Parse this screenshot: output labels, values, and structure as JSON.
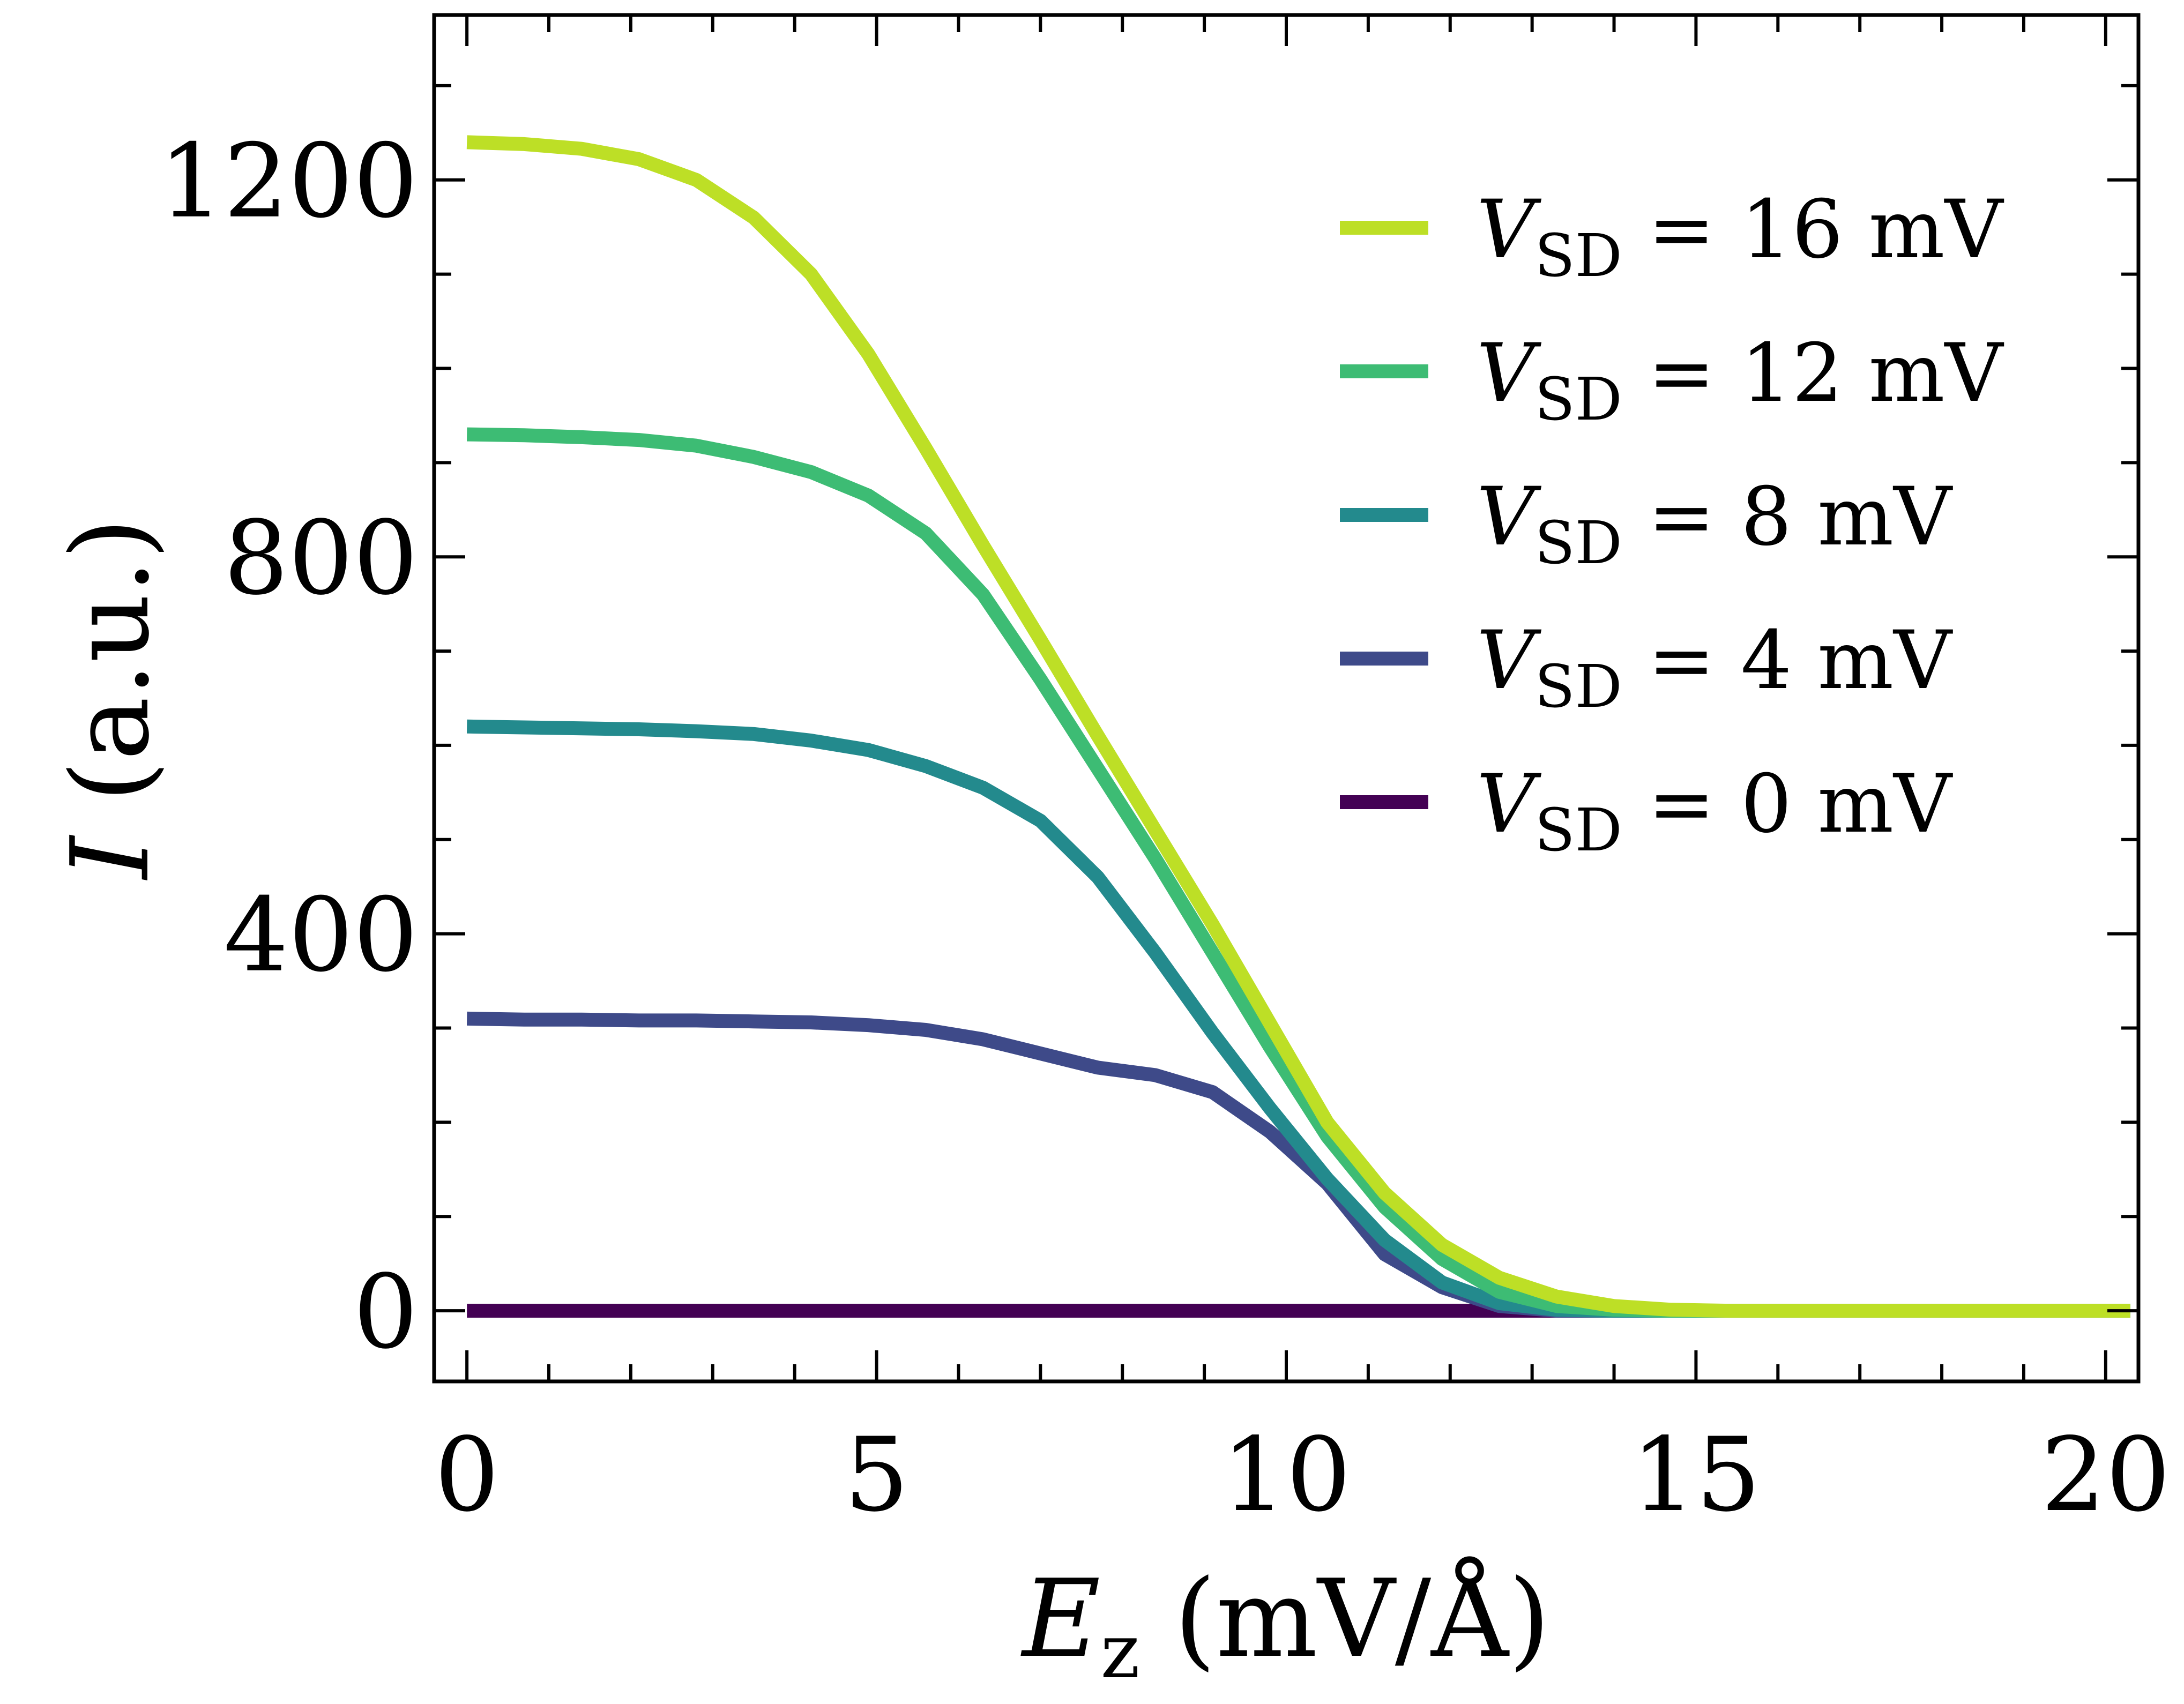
{
  "chart_data": {
    "type": "line",
    "xlabel": {
      "symbol": "E",
      "subscript": "z",
      "unit": " (mV/Å)"
    },
    "ylabel": {
      "symbol": "I",
      "unit": " (a.u.)"
    },
    "xlim": [
      -0.4,
      20.4
    ],
    "ylim": [
      -75,
      1375
    ],
    "xticks": [
      0,
      5,
      10,
      15,
      20
    ],
    "xtick_labels": [
      "0",
      "5",
      "10",
      "15",
      "20"
    ],
    "yticks": [
      0,
      400,
      800,
      1200
    ],
    "ytick_labels": [
      "0",
      "400",
      "800",
      "1200"
    ],
    "legend_position": "top-right",
    "grid": false,
    "x": [
      0,
      0.7,
      1.4,
      2.1,
      2.8,
      3.5,
      4.2,
      4.9,
      5.6,
      6.3,
      7.0,
      7.7,
      8.4,
      9.1,
      9.8,
      10.5,
      11.2,
      11.9,
      12.6,
      13.3,
      14.0,
      14.7,
      15.4,
      16.1,
      16.8,
      17.5,
      18.2,
      18.9,
      19.6,
      20.3
    ],
    "series": [
      {
        "name": "16 mV",
        "legend_symbol": "V",
        "legend_subscript": "SD",
        "legend_value": " = 16 mV",
        "color": "#bddf26",
        "values": [
          1240,
          1238,
          1233,
          1222,
          1200,
          1160,
          1100,
          1015,
          915,
          812,
          712,
          610,
          510,
          410,
          305,
          200,
          125,
          70,
          35,
          15,
          5,
          1,
          0,
          0,
          0,
          0,
          0,
          0,
          0,
          0
        ]
      },
      {
        "name": "12 mV",
        "legend_symbol": "V",
        "legend_subscript": "SD",
        "legend_value": " = 12 mV",
        "color": "#3dbc74",
        "values": [
          930,
          929,
          927,
          924,
          918,
          906,
          890,
          865,
          825,
          760,
          670,
          575,
          480,
          380,
          280,
          185,
          110,
          55,
          20,
          5,
          1,
          0,
          0,
          0,
          0,
          0,
          0,
          0,
          0,
          0
        ]
      },
      {
        "name": "8 mV",
        "legend_symbol": "V",
        "legend_subscript": "SD",
        "legend_value": " = 8 mV",
        "color": "#238a8d",
        "values": [
          620,
          619,
          618,
          617,
          615,
          612,
          605,
          595,
          578,
          555,
          520,
          460,
          380,
          295,
          215,
          140,
          75,
          30,
          8,
          1,
          0,
          0,
          0,
          0,
          0,
          0,
          0,
          0,
          0,
          0
        ]
      },
      {
        "name": "4 mV",
        "legend_symbol": "V",
        "legend_subscript": "SD",
        "legend_value": " = 4 mV",
        "color": "#3e4a89",
        "values": [
          310,
          309,
          309,
          308,
          308,
          307,
          306,
          303,
          298,
          288,
          273,
          258,
          250,
          232,
          190,
          135,
          60,
          25,
          5,
          0,
          0,
          0,
          0,
          0,
          0,
          0,
          0,
          0,
          0,
          0
        ]
      },
      {
        "name": "0 mV",
        "legend_symbol": "V",
        "legend_subscript": "SD",
        "legend_value": " = 0 mV",
        "color": "#440154",
        "values": [
          0,
          0,
          0,
          0,
          0,
          0,
          0,
          0,
          0,
          0,
          0,
          0,
          0,
          0,
          0,
          0,
          0,
          0,
          0,
          0,
          0,
          0,
          0,
          0,
          0,
          0,
          0,
          0,
          0,
          0
        ]
      }
    ]
  }
}
